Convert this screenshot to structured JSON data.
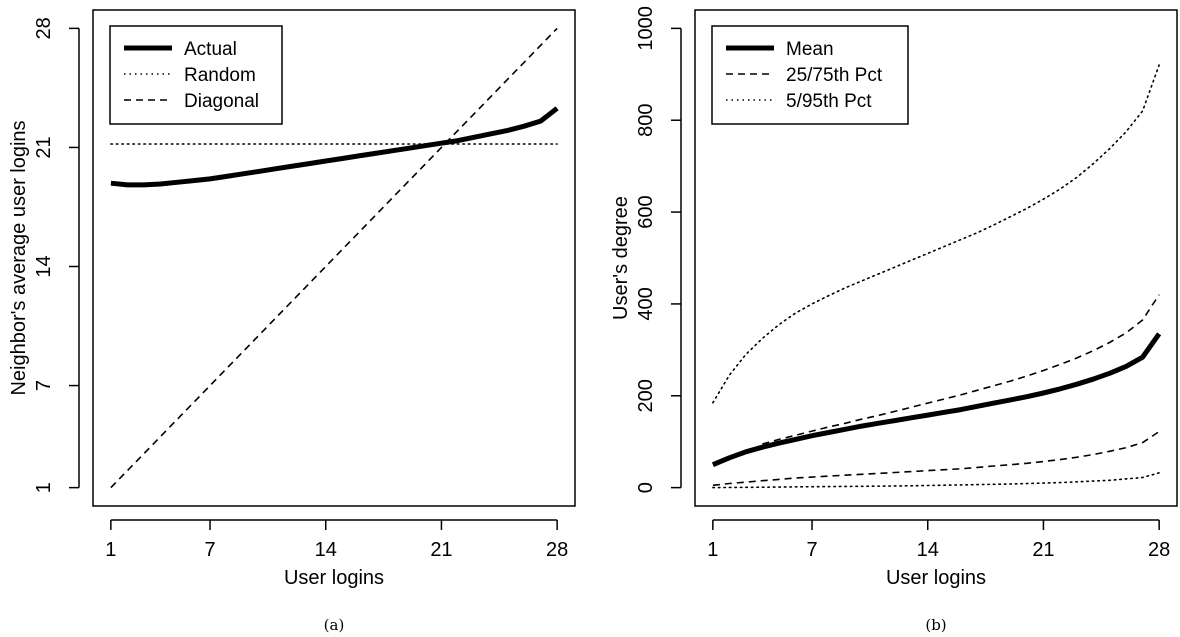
{
  "chart_data": [
    {
      "id": "a",
      "type": "line",
      "caption": "(a)",
      "xlabel": "User logins",
      "ylabel": "Neighbor's average user logins",
      "xlim": [
        1,
        28
      ],
      "ylim": [
        1,
        28
      ],
      "xticks": [
        1,
        7,
        14,
        21,
        28
      ],
      "yticks": [
        1,
        7,
        14,
        21,
        28
      ],
      "grid": false,
      "legend_position": "top-left",
      "series": [
        {
          "name": "Actual",
          "style": "solid-thick",
          "x": [
            1,
            2,
            3,
            4,
            5,
            6,
            7,
            8,
            9,
            10,
            11,
            12,
            13,
            14,
            15,
            16,
            17,
            18,
            19,
            20,
            21,
            22,
            23,
            24,
            25,
            26,
            27,
            28
          ],
          "y": [
            18.9,
            18.8,
            18.8,
            18.85,
            18.95,
            19.05,
            19.15,
            19.3,
            19.45,
            19.6,
            19.75,
            19.9,
            20.05,
            20.2,
            20.35,
            20.5,
            20.65,
            20.8,
            20.95,
            21.1,
            21.25,
            21.4,
            21.6,
            21.8,
            22.0,
            22.25,
            22.55,
            23.3
          ]
        },
        {
          "name": "Random",
          "style": "dotted",
          "x": [
            1,
            28
          ],
          "y": [
            21.2,
            21.2
          ]
        },
        {
          "name": "Diagonal",
          "style": "dashed",
          "x": [
            1,
            28
          ],
          "y": [
            1,
            28
          ]
        }
      ]
    },
    {
      "id": "b",
      "type": "line",
      "caption": "(b)",
      "xlabel": "User logins",
      "ylabel": "User's degree",
      "xlim": [
        1,
        28
      ],
      "ylim": [
        0,
        1000
      ],
      "xticks": [
        1,
        7,
        14,
        21,
        28
      ],
      "yticks": [
        0,
        200,
        400,
        600,
        800,
        1000
      ],
      "grid": false,
      "legend_position": "top-left",
      "series": [
        {
          "name": "Mean",
          "style": "solid-thick",
          "x": [
            1,
            2,
            3,
            4,
            5,
            6,
            7,
            8,
            9,
            10,
            11,
            12,
            13,
            14,
            15,
            16,
            17,
            18,
            19,
            20,
            21,
            22,
            23,
            24,
            25,
            26,
            27,
            28
          ],
          "y": [
            50,
            65,
            78,
            88,
            97,
            105,
            113,
            120,
            127,
            134,
            140,
            146,
            152,
            158,
            164,
            170,
            177,
            184,
            191,
            198,
            206,
            215,
            225,
            236,
            249,
            264,
            284,
            335
          ]
        },
        {
          "name": "25/75th Pct",
          "style": "dashed",
          "x": [
            4,
            5,
            6,
            7,
            8,
            9,
            10,
            11,
            12,
            13,
            14,
            15,
            16,
            17,
            18,
            19,
            20,
            21,
            22,
            23,
            24,
            25,
            26,
            27,
            28
          ],
          "y": [
            95,
            105,
            114,
            123,
            132,
            140,
            149,
            157,
            166,
            175,
            184,
            193,
            202,
            212,
            222,
            232,
            243,
            255,
            268,
            282,
            298,
            316,
            337,
            365,
            420
          ]
        },
        {
          "name": "",
          "style": "dashed",
          "x": [
            1,
            2,
            3,
            4,
            5,
            6,
            7,
            8,
            9,
            10,
            11,
            12,
            13,
            14,
            15,
            16,
            17,
            18,
            19,
            20,
            21,
            22,
            23,
            24,
            25,
            26,
            27,
            28
          ],
          "y": [
            5,
            9,
            12,
            15,
            18,
            21,
            23,
            25,
            27,
            29,
            31,
            33,
            35,
            37,
            39,
            41,
            44,
            47,
            50,
            53,
            57,
            61,
            66,
            72,
            79,
            87,
            98,
            122
          ]
        },
        {
          "name": "5/95th Pct",
          "style": "dotted",
          "x": [
            1,
            2,
            3,
            4,
            5,
            6,
            7,
            8,
            9,
            10,
            11,
            12,
            13,
            14,
            15,
            16,
            17,
            18,
            19,
            20,
            21,
            22,
            23,
            24,
            25,
            26,
            27,
            28
          ],
          "y": [
            185,
            245,
            290,
            325,
            355,
            380,
            400,
            418,
            435,
            450,
            465,
            480,
            495,
            510,
            525,
            540,
            555,
            572,
            590,
            608,
            628,
            650,
            675,
            705,
            738,
            775,
            820,
            920
          ]
        },
        {
          "name": "",
          "style": "dotted",
          "x": [
            1,
            4,
            7,
            10,
            13,
            16,
            19,
            22,
            25,
            27,
            28
          ],
          "y": [
            0,
            1,
            2,
            3,
            4,
            6,
            8,
            11,
            16,
            22,
            32
          ]
        }
      ]
    }
  ]
}
